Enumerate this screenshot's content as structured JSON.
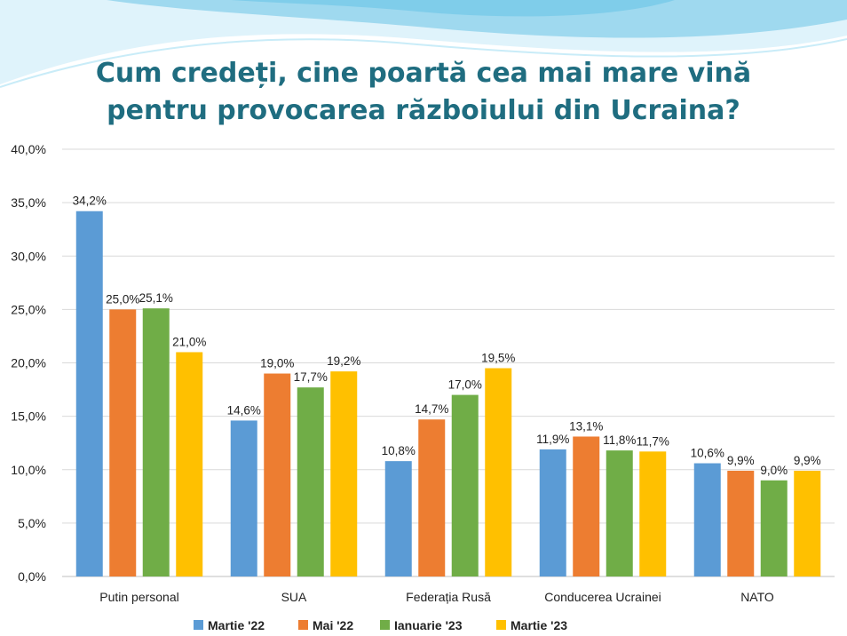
{
  "colors": {
    "title": "#1f6d80",
    "series": [
      "#5b9bd5",
      "#ed7d31",
      "#70ad47",
      "#ffc000"
    ],
    "grid": "#d9d9d9",
    "wave": [
      "#bfe6f5",
      "#7fcdea",
      "#dff3fb"
    ]
  },
  "chart_data": {
    "type": "bar",
    "title": "Cum credeți, cine poartă cea mai mare vină pentru provocarea războiului din Ucraina?",
    "title_lines": [
      "Cum credeți, cine poartă cea mai mare vină",
      "pentru provocarea războiului din  Ucraina?"
    ],
    "categories": [
      "Putin personal",
      "SUA",
      "Federația Rusă",
      "Conducerea Ucrainei",
      "NATO"
    ],
    "series": [
      {
        "name": "Martie '22",
        "values": [
          34.2,
          14.6,
          10.8,
          11.9,
          10.6
        ],
        "labels": [
          "34,2%",
          "14,6%",
          "10,8%",
          "11,9%",
          "10,6%"
        ]
      },
      {
        "name": "Mai '22",
        "values": [
          25.0,
          19.0,
          14.7,
          13.1,
          9.9
        ],
        "labels": [
          "25,0%",
          "19,0%",
          "14,7%",
          "13,1%",
          "9,9%"
        ]
      },
      {
        "name": "Ianuarie '23",
        "values": [
          25.1,
          17.7,
          17.0,
          11.8,
          9.0
        ],
        "labels": [
          "25,1%",
          "17,7%",
          "17,0%",
          "11,8%",
          "9,0%"
        ]
      },
      {
        "name": "Martie '23",
        "values": [
          21.0,
          19.2,
          19.5,
          11.7,
          9.9
        ],
        "labels": [
          "21,0%",
          "19,2%",
          "19,5%",
          "11,7%",
          "9,9%"
        ]
      }
    ],
    "ylim": [
      0,
      40
    ],
    "yticks": [
      0,
      5,
      10,
      15,
      20,
      25,
      30,
      35,
      40
    ],
    "ytick_labels": [
      "0,0%",
      "5,0%",
      "10,0%",
      "15,0%",
      "20,0%",
      "25,0%",
      "30,0%",
      "35,0%",
      "40,0%"
    ],
    "grid": true,
    "legend_position": "bottom"
  }
}
